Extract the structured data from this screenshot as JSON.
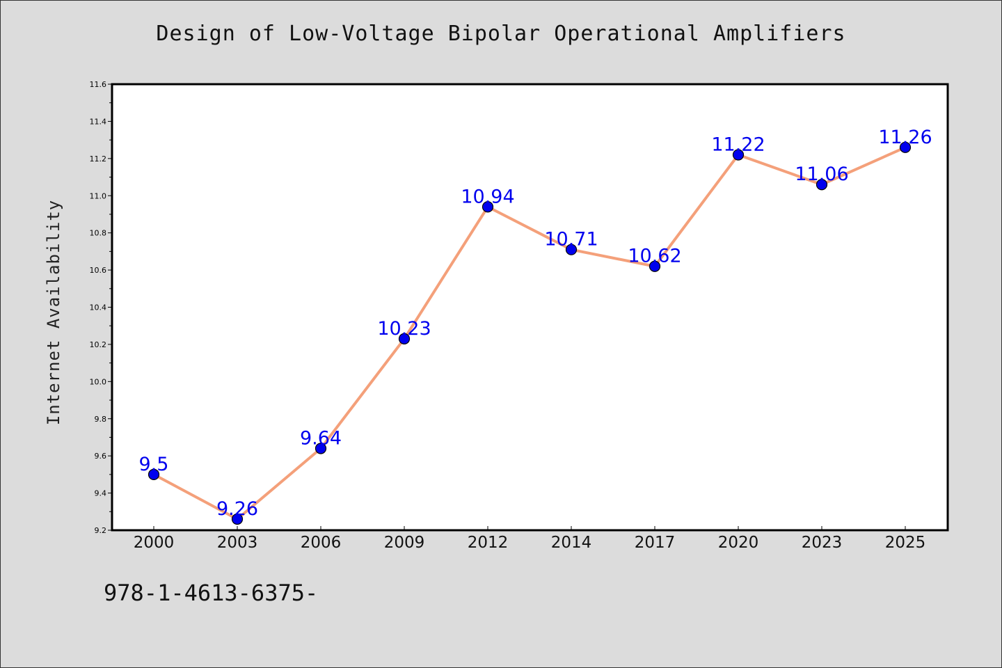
{
  "chart_data": {
    "type": "line",
    "title": "Design of Low-Voltage Bipolar Operational Amplifiers",
    "xlabel": "",
    "ylabel": "Internet Availability",
    "categories": [
      "2000",
      "2003",
      "2006",
      "2009",
      "2012",
      "2014",
      "2017",
      "2020",
      "2023",
      "2025"
    ],
    "values": [
      9.5,
      9.26,
      9.64,
      10.23,
      10.94,
      10.71,
      10.62,
      11.22,
      11.06,
      11.26
    ],
    "data_labels": [
      "9.5",
      "9.26",
      "9.64",
      "10.23",
      "10.94",
      "10.71",
      "10.62",
      "11.22",
      "11.06",
      "11.26"
    ],
    "ylim": [
      9.2,
      11.6
    ],
    "yticks": [
      "9.2",
      "9.4",
      "9.6",
      "9.8",
      "10.0",
      "10.2",
      "10.4",
      "10.6",
      "10.8",
      "11.0",
      "11.2",
      "11.4",
      "11.6"
    ],
    "grid": false,
    "colors": {
      "line": "#f4a07a",
      "marker": "#0000ee",
      "label": "#0000ee",
      "background": "#dcdcdc",
      "plot_background": "#ffffff"
    }
  },
  "footer": {
    "isbn": "978-1-4613-6375-"
  }
}
